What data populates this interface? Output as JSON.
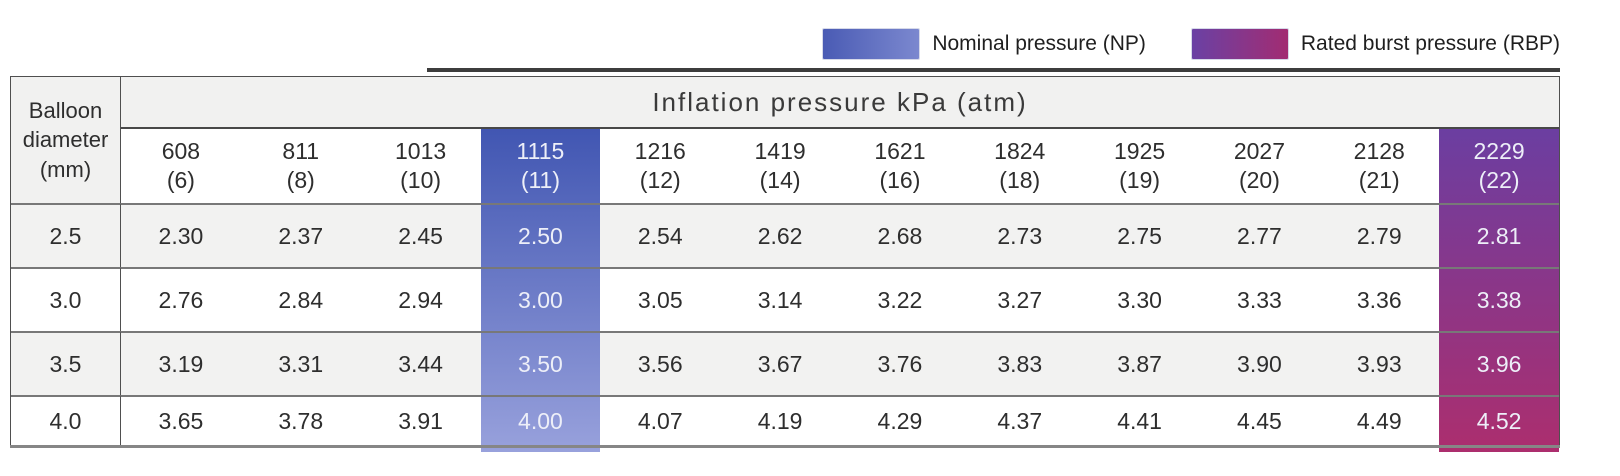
{
  "legend": {
    "np_label": "Nominal pressure (NP)",
    "rbp_label": "Rated burst pressure (RBP)"
  },
  "colors": {
    "np_gradient_top": "#4156B2",
    "np_gradient_bottom": "#98A1DC",
    "rbp_gradient_top": "#6B3EA1",
    "rbp_gradient_bottom": "#AC2E6E",
    "np_swatch_left": "#4A5BB4",
    "np_swatch_right": "#7B88CF",
    "rbp_swatch_left": "#6A41A4",
    "rbp_swatch_right": "#A22C72",
    "header_bg": "#F1F1F0",
    "alt_row_bg": "#F2F2F1",
    "highlight_text": "#EDEFF8"
  },
  "table": {
    "corner_header": "Balloon diameter (mm)",
    "group_header": "Inflation pressure kPa (atm)",
    "columns": [
      {
        "kpa": "608",
        "atm": "(6)"
      },
      {
        "kpa": "811",
        "atm": "(8)"
      },
      {
        "kpa": "1013",
        "atm": "(10)"
      },
      {
        "kpa": "1115",
        "atm": "(11)",
        "highlight": "np"
      },
      {
        "kpa": "1216",
        "atm": "(12)"
      },
      {
        "kpa": "1419",
        "atm": "(14)"
      },
      {
        "kpa": "1621",
        "atm": "(16)"
      },
      {
        "kpa": "1824",
        "atm": "(18)"
      },
      {
        "kpa": "1925",
        "atm": "(19)"
      },
      {
        "kpa": "2027",
        "atm": "(20)"
      },
      {
        "kpa": "2128",
        "atm": "(21)"
      },
      {
        "kpa": "2229",
        "atm": "(22)",
        "highlight": "rbp"
      }
    ],
    "rows": [
      {
        "diameter": "2.5",
        "values": [
          "2.30",
          "2.37",
          "2.45",
          "2.50",
          "2.54",
          "2.62",
          "2.68",
          "2.73",
          "2.75",
          "2.77",
          "2.79",
          "2.81"
        ]
      },
      {
        "diameter": "3.0",
        "values": [
          "2.76",
          "2.84",
          "2.94",
          "3.00",
          "3.05",
          "3.14",
          "3.22",
          "3.27",
          "3.30",
          "3.33",
          "3.36",
          "3.38"
        ]
      },
      {
        "diameter": "3.5",
        "values": [
          "3.19",
          "3.31",
          "3.44",
          "3.50",
          "3.56",
          "3.67",
          "3.76",
          "3.83",
          "3.87",
          "3.90",
          "3.93",
          "3.96"
        ]
      },
      {
        "diameter": "4.0",
        "values": [
          "3.65",
          "3.78",
          "3.91",
          "4.00",
          "4.07",
          "4.19",
          "4.29",
          "4.37",
          "4.41",
          "4.45",
          "4.49",
          "4.52"
        ]
      }
    ]
  },
  "chart_data": {
    "type": "table",
    "title": "Inflation pressure kPa (atm)",
    "row_header": "Balloon diameter (mm)",
    "columns_kpa": [
      608,
      811,
      1013,
      1115,
      1216,
      1419,
      1621,
      1824,
      1925,
      2027,
      2128,
      2229
    ],
    "columns_atm": [
      6,
      8,
      10,
      11,
      12,
      14,
      16,
      18,
      19,
      20,
      21,
      22
    ],
    "nominal_pressure_atm": 11,
    "rated_burst_pressure_atm": 22,
    "rows": [
      {
        "balloon_diameter_mm": 2.5,
        "diameters": [
          2.3,
          2.37,
          2.45,
          2.5,
          2.54,
          2.62,
          2.68,
          2.73,
          2.75,
          2.77,
          2.79,
          2.81
        ]
      },
      {
        "balloon_diameter_mm": 3.0,
        "diameters": [
          2.76,
          2.84,
          2.94,
          3.0,
          3.05,
          3.14,
          3.22,
          3.27,
          3.3,
          3.33,
          3.36,
          3.38
        ]
      },
      {
        "balloon_diameter_mm": 3.5,
        "diameters": [
          3.19,
          3.31,
          3.44,
          3.5,
          3.56,
          3.67,
          3.76,
          3.83,
          3.87,
          3.9,
          3.93,
          3.96
        ]
      },
      {
        "balloon_diameter_mm": 4.0,
        "diameters": [
          3.65,
          3.78,
          3.91,
          4.0,
          4.07,
          4.19,
          4.29,
          4.37,
          4.41,
          4.45,
          4.49,
          4.52
        ]
      }
    ],
    "legend": [
      "Nominal pressure (NP)",
      "Rated burst pressure (RBP)"
    ]
  }
}
